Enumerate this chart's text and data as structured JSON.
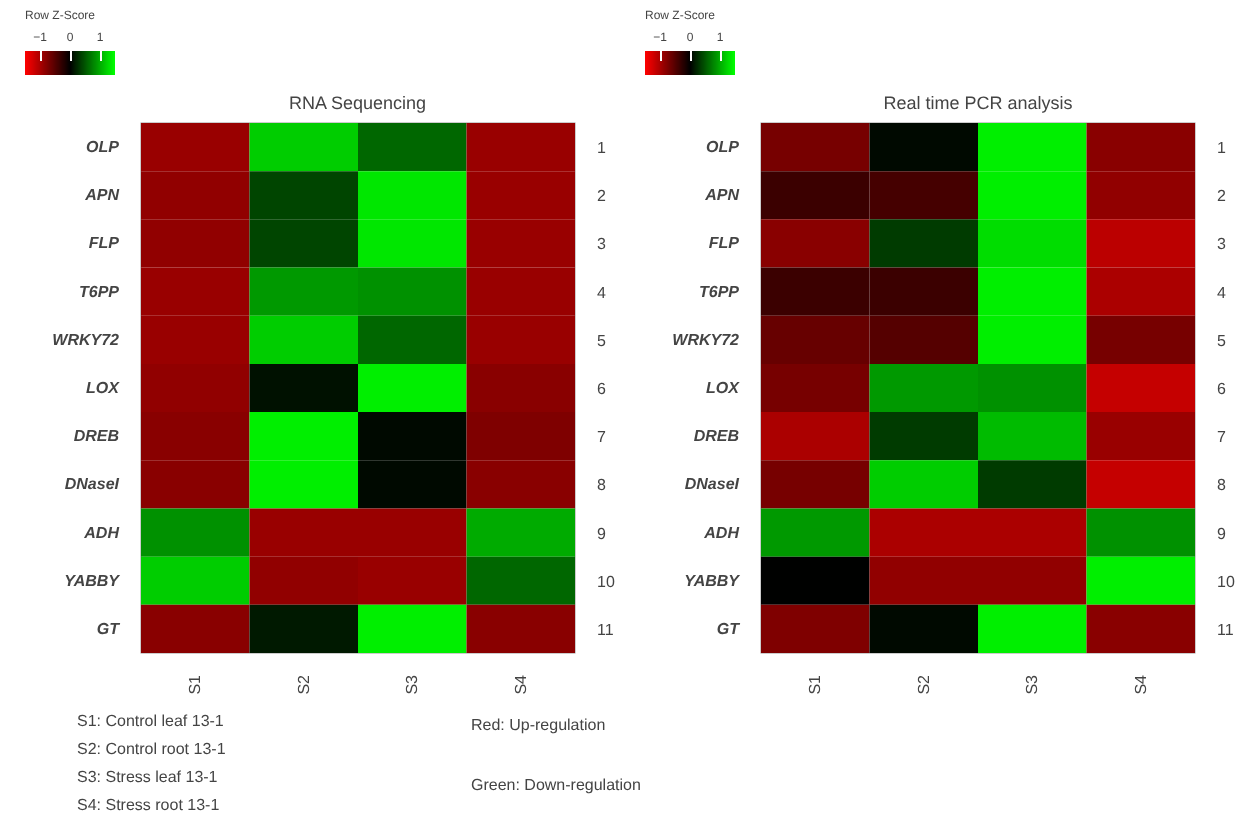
{
  "chart_data": [
    {
      "type": "heatmap",
      "title": "RNA Sequencing",
      "clabel": "Row Z-Score",
      "clim": [
        -1.5,
        1.5
      ],
      "cticks": [
        -1,
        0,
        1
      ],
      "colors": [
        "#ff0000",
        "#000000",
        "#00ff00"
      ],
      "categories": [
        "S1",
        "S2",
        "S3",
        "S4"
      ],
      "y_categories": [
        "OLP",
        "APN",
        "FLP",
        "T6PP",
        "WRKY72",
        "LOX",
        "DREB",
        "DNaseI",
        "ADH",
        "YABBY",
        "GT"
      ],
      "y2_categories": [
        "1",
        "2",
        "3",
        "4",
        "5",
        "6",
        "7",
        "8",
        "9",
        "10",
        "11"
      ],
      "cells": [
        [
          -0.9,
          1.2,
          0.6,
          -0.9
        ],
        [
          -0.85,
          0.4,
          1.35,
          -0.9
        ],
        [
          -0.85,
          0.4,
          1.35,
          -0.9
        ],
        [
          -0.9,
          0.9,
          0.85,
          -0.9
        ],
        [
          -0.9,
          1.2,
          0.6,
          -0.9
        ],
        [
          -0.85,
          0.1,
          1.4,
          -0.8
        ],
        [
          -0.8,
          1.4,
          0.05,
          -0.75
        ],
        [
          -0.8,
          1.4,
          0.05,
          -0.8
        ],
        [
          0.85,
          -0.9,
          -0.9,
          1.0
        ],
        [
          1.2,
          -0.85,
          -0.9,
          0.6
        ],
        [
          -0.8,
          0.15,
          1.4,
          -0.8
        ]
      ],
      "annotations": [
        "S1: Control leaf 13-1",
        "S2: Control root 13-1",
        "S3: Stress leaf 13-1",
        "S4: Stress root 13-1",
        "Red: Up-regulation",
        "Green: Down-regulation"
      ]
    },
    {
      "type": "heatmap",
      "title": "Real time PCR analysis",
      "clabel": "Row Z-Score",
      "clim": [
        -1.5,
        1.5
      ],
      "cticks": [
        -1,
        0,
        1
      ],
      "colors": [
        "#ff0000",
        "#000000",
        "#00ff00"
      ],
      "categories": [
        "S1",
        "S2",
        "S3",
        "S4"
      ],
      "y_categories": [
        "OLP",
        "APN",
        "FLP",
        "T6PP",
        "WRKY72",
        "LOX",
        "DREB",
        "DNaseI",
        "ADH",
        "YABBY",
        "GT"
      ],
      "y2_categories": [
        "1",
        "2",
        "3",
        "4",
        "5",
        "6",
        "7",
        "8",
        "9",
        "10",
        "11"
      ],
      "cells": [
        [
          -0.7,
          0.05,
          1.4,
          -0.8
        ],
        [
          -0.35,
          -0.4,
          1.4,
          -0.85
        ],
        [
          -0.8,
          0.35,
          1.3,
          -1.1
        ],
        [
          -0.35,
          -0.35,
          1.4,
          -1.0
        ],
        [
          -0.6,
          -0.5,
          1.4,
          -0.7
        ],
        [
          -0.7,
          0.9,
          0.85,
          -1.15
        ],
        [
          -1.0,
          0.35,
          1.1,
          -0.9
        ],
        [
          -0.7,
          1.2,
          0.35,
          -1.15
        ],
        [
          0.9,
          -1.0,
          -1.0,
          0.85
        ],
        [
          0.0,
          -0.85,
          -0.85,
          1.4
        ],
        [
          -0.75,
          0.05,
          1.4,
          -0.8
        ]
      ]
    }
  ]
}
